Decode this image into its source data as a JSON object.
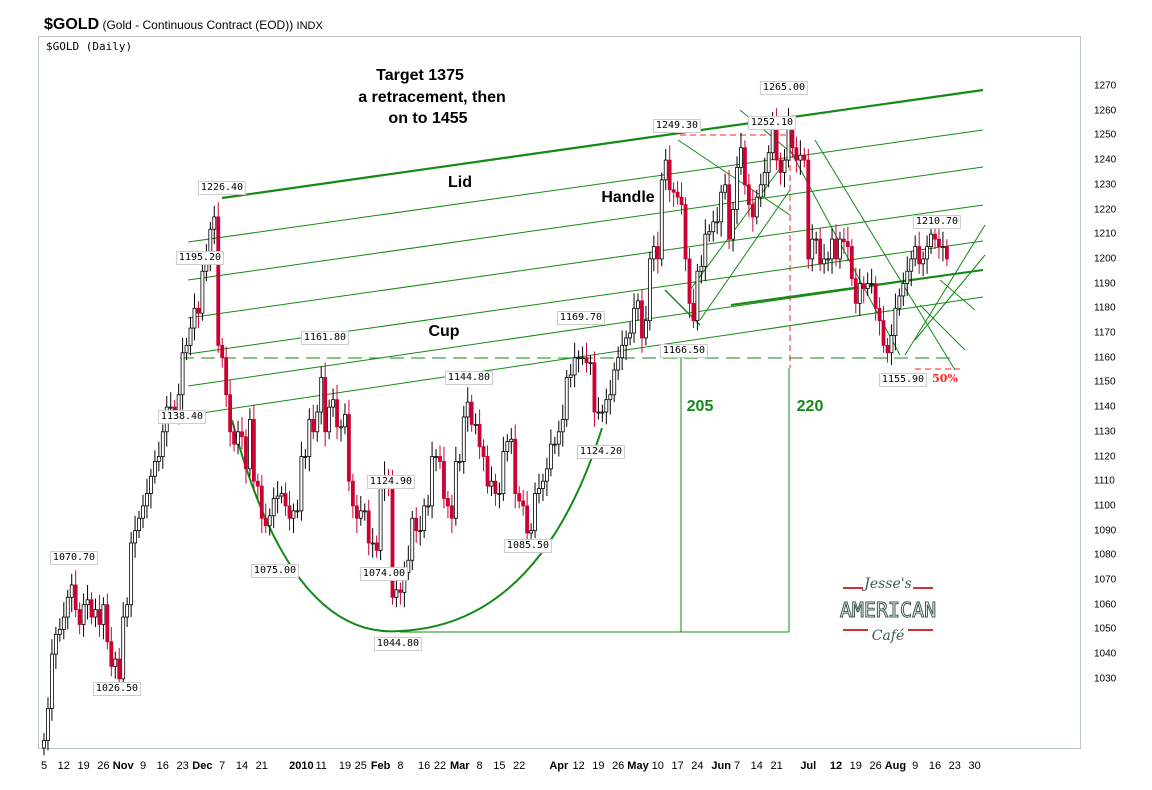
{
  "header": {
    "symbol": "$GOLD",
    "description": "(Gold - Continuous Contract (EOD))",
    "exchange": "INDX",
    "subtitle": "$GOLD (Daily)"
  },
  "colors": {
    "up": "#000000",
    "down": "#cc0033",
    "trend": "#138a13",
    "red_line": "#ff2020"
  },
  "chart_data": {
    "type": "candlestick",
    "title": "$GOLD (Daily)",
    "start_date": "2009-10-05",
    "closes": [
      1005,
      1018,
      1040,
      1048,
      1050,
      1055,
      1063,
      1068,
      1058,
      1052,
      1060,
      1062,
      1055,
      1058,
      1052,
      1060,
      1045,
      1035,
      1038,
      1030,
      1055,
      1060,
      1085,
      1090,
      1095,
      1100,
      1105,
      1112,
      1118,
      1120,
      1130,
      1140,
      1140,
      1138,
      1145,
      1162,
      1165,
      1172,
      1180,
      1178,
      1195,
      1200,
      1212,
      1217,
      1165,
      1160,
      1145,
      1130,
      1125,
      1130,
      1128,
      1115,
      1135,
      1110,
      1108,
      1095,
      1092,
      1096,
      1103,
      1104,
      1105,
      1100,
      1095,
      1098,
      1098,
      1120,
      1120,
      1135,
      1130,
      1138,
      1152,
      1130,
      1140,
      1143,
      1132,
      1132,
      1137,
      1110,
      1100,
      1095,
      1098,
      1098,
      1085,
      1085,
      1082,
      1107,
      1112,
      1110,
      1063,
      1066,
      1065,
      1073,
      1078,
      1095,
      1090,
      1090,
      1100,
      1100,
      1120,
      1120,
      1118,
      1103,
      1100,
      1095,
      1118,
      1118,
      1136,
      1142,
      1133,
      1133,
      1124,
      1120,
      1108,
      1110,
      1105,
      1105,
      1122,
      1126,
      1127,
      1105,
      1102,
      1100,
      1089,
      1090,
      1105,
      1107,
      1110,
      1115,
      1125,
      1125,
      1130,
      1135,
      1152,
      1153,
      1160,
      1160,
      1160,
      1158,
      1158,
      1138,
      1138,
      1138,
      1143,
      1145,
      1155,
      1160,
      1165,
      1168,
      1170,
      1180,
      1183,
      1168,
      1175,
      1200,
      1205,
      1200,
      1232,
      1240,
      1228,
      1227,
      1225,
      1222,
      1200,
      1182,
      1175,
      1195,
      1197,
      1210,
      1211,
      1215,
      1215,
      1227,
      1230,
      1208,
      1220,
      1237,
      1245,
      1230,
      1222,
      1217,
      1225,
      1230,
      1235,
      1243,
      1255,
      1240,
      1235,
      1240,
      1255,
      1245,
      1240,
      1242,
      1240,
      1200,
      1208,
      1208,
      1198,
      1200,
      1200,
      1208,
      1200,
      1208,
      1207,
      1205,
      1192,
      1182,
      1190,
      1188,
      1190,
      1190,
      1180,
      1175,
      1165,
      1162,
      1169,
      1180,
      1185,
      1190,
      1195,
      1200,
      1205,
      1198,
      1200,
      1205,
      1210,
      1208,
      1205,
      1205,
      1200
    ],
    "ylim": [
      1000,
      1280
    ],
    "yticks": [
      1030,
      1040,
      1050,
      1060,
      1070,
      1080,
      1090,
      1100,
      1110,
      1120,
      1130,
      1140,
      1150,
      1160,
      1170,
      1180,
      1190,
      1200,
      1210,
      1220,
      1230,
      1240,
      1250,
      1260,
      1270
    ],
    "xticks": [
      {
        "label": "5",
        "date": "2009-10-05"
      },
      {
        "label": "12",
        "date": "2009-10-12"
      },
      {
        "label": "19",
        "date": "2009-10-19"
      },
      {
        "label": "26",
        "date": "2009-10-26"
      },
      {
        "label": "Nov",
        "date": "2009-11-02",
        "major": true
      },
      {
        "label": "9",
        "date": "2009-11-09"
      },
      {
        "label": "16",
        "date": "2009-11-16"
      },
      {
        "label": "23",
        "date": "2009-11-23"
      },
      {
        "label": "Dec",
        "date": "2009-11-30",
        "major": true
      },
      {
        "label": "7",
        "date": "2009-12-07"
      },
      {
        "label": "14",
        "date": "2009-12-14"
      },
      {
        "label": "21",
        "date": "2009-12-21"
      },
      {
        "label": "2010",
        "date": "2010-01-04",
        "major": true
      },
      {
        "label": "11",
        "date": "2010-01-11"
      },
      {
        "label": "19",
        "date": "2010-01-19"
      },
      {
        "label": "25",
        "date": "2010-01-25"
      },
      {
        "label": "Feb",
        "date": "2010-02-01",
        "major": true
      },
      {
        "label": "8",
        "date": "2010-02-08"
      },
      {
        "label": "16",
        "date": "2010-02-16"
      },
      {
        "label": "22",
        "date": "2010-02-22"
      },
      {
        "label": "Mar",
        "date": "2010-03-01",
        "major": true
      },
      {
        "label": "8",
        "date": "2010-03-08"
      },
      {
        "label": "15",
        "date": "2010-03-15"
      },
      {
        "label": "22",
        "date": "2010-03-22"
      },
      {
        "label": "Apr",
        "date": "2010-04-05",
        "major": true
      },
      {
        "label": "12",
        "date": "2010-04-12"
      },
      {
        "label": "19",
        "date": "2010-04-19"
      },
      {
        "label": "26",
        "date": "2010-04-26"
      },
      {
        "label": "May",
        "date": "2010-05-03",
        "major": true
      },
      {
        "label": "10",
        "date": "2010-05-10"
      },
      {
        "label": "17",
        "date": "2010-05-17"
      },
      {
        "label": "24",
        "date": "2010-05-24"
      },
      {
        "label": "Jun",
        "date": "2010-06-01",
        "major": true
      },
      {
        "label": "7",
        "date": "2010-06-07"
      },
      {
        "label": "14",
        "date": "2010-06-14"
      },
      {
        "label": "21",
        "date": "2010-06-21"
      },
      {
        "label": "Jul",
        "date": "2010-07-01",
        "major": true
      },
      {
        "label": "12",
        "date": "2010-07-12",
        "major": true
      },
      {
        "label": "19",
        "date": "2010-07-19"
      },
      {
        "label": "26",
        "date": "2010-07-26"
      },
      {
        "label": "Aug",
        "date": "2010-08-02",
        "major": true
      },
      {
        "label": "9",
        "date": "2010-08-09"
      },
      {
        "label": "16",
        "date": "2010-08-16"
      },
      {
        "label": "23",
        "date": "2010-08-23"
      },
      {
        "label": "30",
        "date": "2010-08-30"
      }
    ],
    "price_labels": [
      "1226.40",
      "1195.20",
      "1138.40",
      "1070.70",
      "1026.50",
      "1161.80",
      "1075.00",
      "1124.90",
      "1074.00",
      "1044.80",
      "1144.80",
      "1085.50",
      "1124.20",
      "1169.70",
      "1249.30",
      "1166.50",
      "1252.10",
      "1265.00",
      "1210.70",
      "1155.90"
    ],
    "annotations": {
      "target": "Target 1375",
      "retrace": "a retracement,  then",
      "onto": "on  to 1455",
      "lid": "Lid",
      "handle": "Handle",
      "cup": "Cup",
      "depth1": "205",
      "depth2": "220",
      "pct": "50%"
    }
  },
  "logo": {
    "line1": "Jesse's",
    "line2": "AMERICAN",
    "line3": "Café"
  }
}
